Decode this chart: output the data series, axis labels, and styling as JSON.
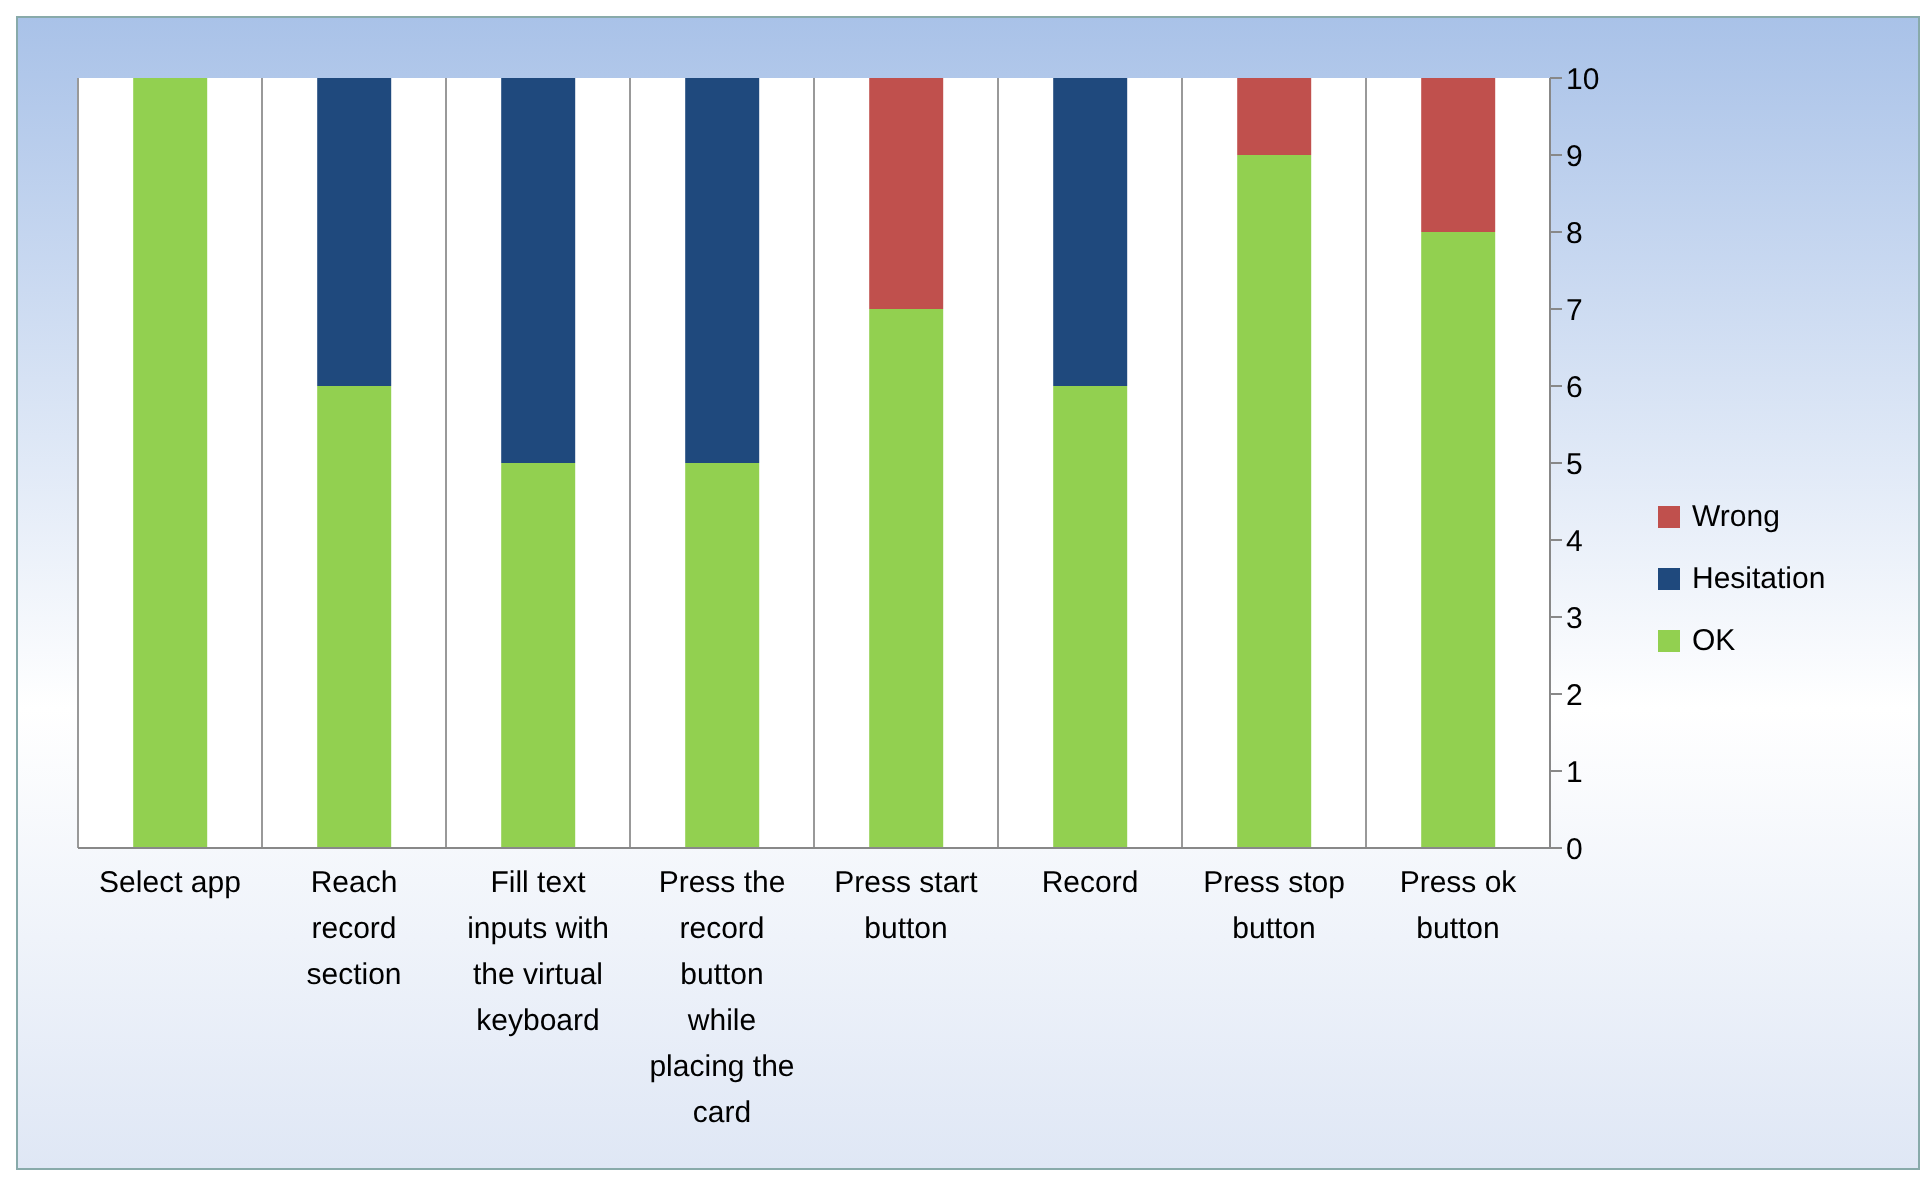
{
  "chart_data": {
    "type": "bar",
    "stacked": true,
    "categories": [
      "Select app",
      "Reach record section",
      "Fill text inputs with the virtual keyboard",
      "Press the record button while placing the card",
      "Press start button",
      "Record",
      "Press stop button",
      "Press ok button"
    ],
    "series": [
      {
        "name": "OK",
        "color": "#92d050",
        "values": [
          10,
          6,
          5,
          5,
          7,
          6,
          9,
          8
        ]
      },
      {
        "name": "Hesitation",
        "color": "#1f497d",
        "values": [
          0,
          4,
          5,
          5,
          0,
          4,
          0,
          0
        ]
      },
      {
        "name": "Wrong",
        "color": "#c0504d",
        "values": [
          0,
          0,
          0,
          0,
          3,
          0,
          1,
          2
        ]
      }
    ],
    "ylim": [
      0,
      10
    ],
    "yticks": [
      0,
      1,
      2,
      3,
      4,
      5,
      6,
      7,
      8,
      9,
      10
    ],
    "grid": "x",
    "legend": "right"
  }
}
